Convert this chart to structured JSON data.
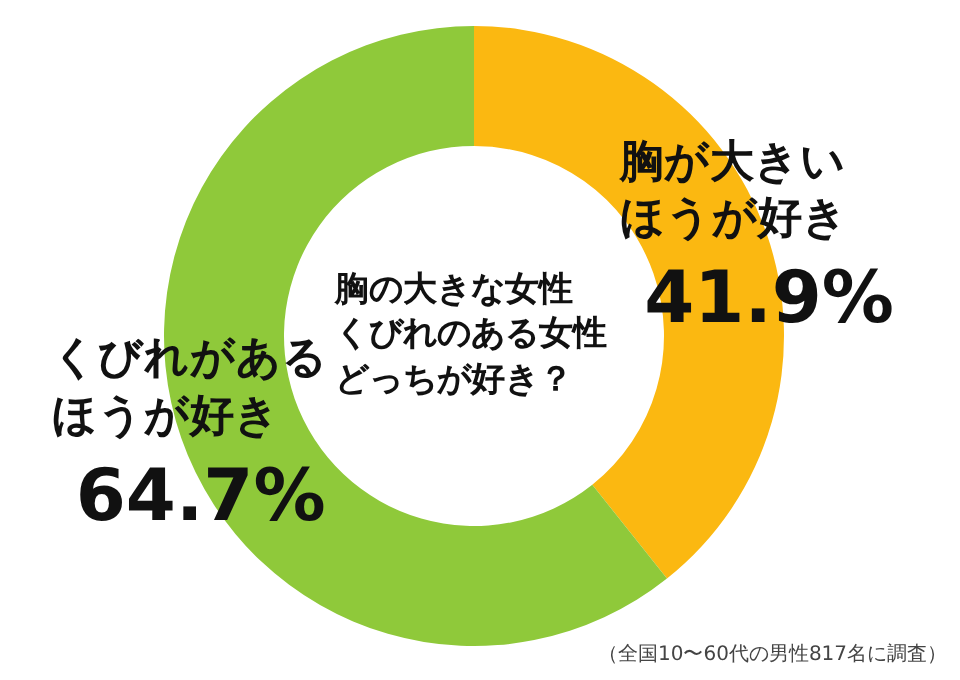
{
  "chart_data": {
    "type": "donut",
    "title": "胸の大きな女性",
    "subtitle": "くびれのある女性どっちが好き？",
    "categories": [
      "胸が大きいほうが好き",
      "くびれがあるほうが好き"
    ],
    "values": [
      41.9,
      64.7
    ],
    "value_labels": [
      "41.9%",
      "64.7%"
    ],
    "colors": [
      "#fbb811",
      "#8fc93a"
    ],
    "annotations": [
      "（全国10〜60代の男性817名に調査）"
    ]
  }
}
